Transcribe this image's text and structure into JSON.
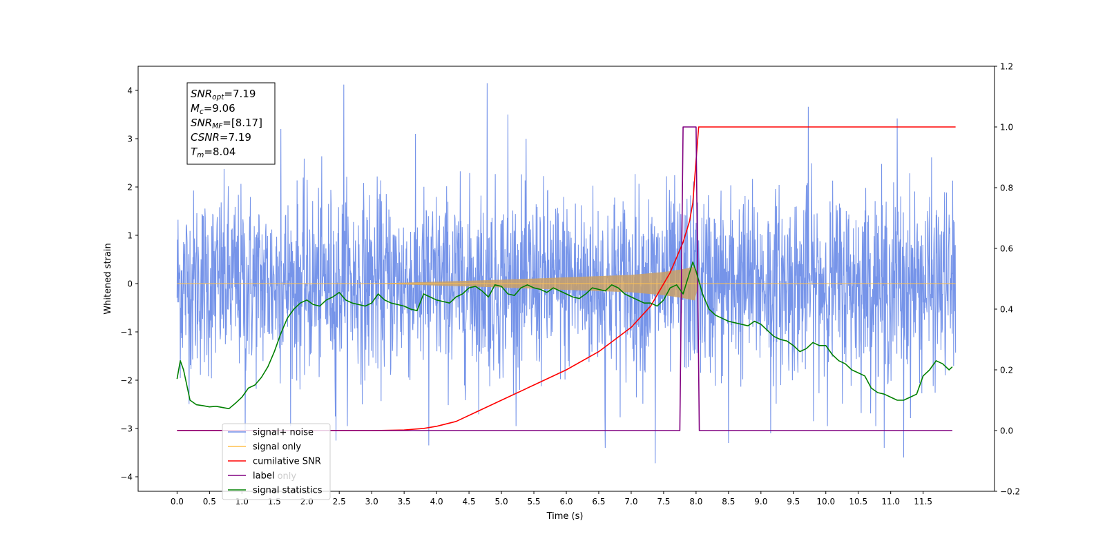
{
  "chart_data": {
    "type": "line",
    "xlabel": "Time (s)",
    "ylabel": "Whitened strain",
    "xlim": [
      -0.6,
      12.6
    ],
    "ylim": [
      -4.3,
      4.5
    ],
    "y2lim": [
      -0.2,
      1.2
    ],
    "x_ticks": [
      0.0,
      0.5,
      1.0,
      1.5,
      2.0,
      2.5,
      3.0,
      3.5,
      4.0,
      4.5,
      5.0,
      5.5,
      6.0,
      6.5,
      7.0,
      7.5,
      8.0,
      8.5,
      9.0,
      9.5,
      10.0,
      10.5,
      11.0,
      11.5
    ],
    "x_tick_labels": [
      "0.0",
      "0.5",
      "1.0",
      "1.5",
      "2.0",
      "2.5",
      "3.0",
      "3.5",
      "4.0",
      "4.5",
      "5.0",
      "5.5",
      "6.0",
      "6.5",
      "7.0",
      "7.5",
      "8.0",
      "8.5",
      "9.0",
      "9.5",
      "10.0",
      "10.5",
      "11.0",
      "11.5"
    ],
    "y_ticks": [
      -4,
      -3,
      -2,
      -1,
      0,
      1,
      2,
      3,
      4
    ],
    "y_tick_labels": [
      "−4",
      "−3",
      "−2",
      "−1",
      "0",
      "1",
      "2",
      "3",
      "4"
    ],
    "y2_ticks": [
      -0.2,
      0.0,
      0.2,
      0.4,
      0.6,
      0.8,
      1.0,
      1.2
    ],
    "y2_tick_labels": [
      "−0.2",
      "0.0",
      "0.2",
      "0.4",
      "0.6",
      "0.8",
      "1.0",
      "1.2"
    ],
    "grid": false,
    "legend_position": "lower-left",
    "legend": [
      {
        "label": "signal+ noise",
        "color": "#6f8ee8"
      },
      {
        "label": "signal only",
        "color": "#ffc04d"
      },
      {
        "label": "cumilative SNR",
        "color": "#ff0000"
      },
      {
        "label": "label",
        "color": "#800080"
      },
      {
        "label": "signal statistics",
        "color": "#008000"
      }
    ],
    "hidden_legend_text": "label only",
    "annotation_lines": [
      {
        "sym": "SNR",
        "sub": "opt",
        "rest": "=7.19"
      },
      {
        "sym": "M",
        "sub": "c",
        "rest": "=9.06"
      },
      {
        "sym": "SNR",
        "sub": "MF",
        "rest": "=[8.17]"
      },
      {
        "sym": "CSNR",
        "sub": "",
        "rest": "=7.19"
      },
      {
        "sym": "T",
        "sub": "m",
        "rest": "=8.04"
      }
    ],
    "series": [
      {
        "name": "signal+ noise",
        "axis": "left",
        "color": "#6f8ee8",
        "kind": "noise",
        "x_range": [
          0.0,
          12.0
        ],
        "sigma": 1.0,
        "spikes": [
          [
            2.57,
            4.12
          ],
          [
            4.78,
            4.15
          ],
          [
            7.37,
            -3.72
          ],
          [
            9.73,
            3.66
          ],
          [
            11.1,
            3.42
          ],
          [
            11.2,
            -3.6
          ],
          [
            3.88,
            -3.35
          ],
          [
            6.6,
            -3.4
          ],
          [
            8.5,
            -3.3
          ],
          [
            1.05,
            -3.3
          ],
          [
            2.45,
            -3.25
          ],
          [
            5.1,
            3.5
          ],
          [
            1.6,
            3.2
          ],
          [
            10.9,
            -3.4
          ],
          [
            9.15,
            -3.1
          ]
        ]
      },
      {
        "name": "signal only",
        "axis": "left",
        "color": "#ffc04d",
        "kind": "chirp",
        "x_range": [
          0.0,
          12.0
        ],
        "amplitude_curve": {
          "x": [
            0,
            3.0,
            4.0,
            5.0,
            6.0,
            7.0,
            7.5,
            7.8,
            7.98,
            8.04,
            8.06,
            12.0
          ],
          "y": [
            0,
            0.0,
            0.04,
            0.08,
            0.13,
            0.18,
            0.24,
            0.3,
            0.35,
            0.0,
            0.0,
            0.0
          ]
        }
      },
      {
        "name": "cumilative SNR",
        "axis": "right",
        "color": "#ff0000",
        "x": [
          0.0,
          3.0,
          3.5,
          3.8,
          4.0,
          4.3,
          4.6,
          5.0,
          5.5,
          6.0,
          6.5,
          7.0,
          7.3,
          7.6,
          7.8,
          7.9,
          7.95,
          8.0,
          8.04,
          12.0
        ],
        "y": [
          0.0,
          0.0,
          0.002,
          0.007,
          0.014,
          0.03,
          0.06,
          0.1,
          0.15,
          0.2,
          0.26,
          0.34,
          0.41,
          0.52,
          0.62,
          0.69,
          0.75,
          0.89,
          1.0,
          1.0
        ]
      },
      {
        "name": "label",
        "axis": "right",
        "color": "#800080",
        "x": [
          0.0,
          7.75,
          7.8,
          8.0,
          8.05,
          11.95
        ],
        "y": [
          0.0,
          0.0,
          1.0,
          1.0,
          0.0,
          0.0
        ]
      },
      {
        "name": "signal statistics",
        "axis": "right",
        "color": "#008000",
        "x": [
          0.0,
          0.05,
          0.1,
          0.2,
          0.3,
          0.4,
          0.5,
          0.6,
          0.7,
          0.8,
          0.9,
          1.0,
          1.1,
          1.2,
          1.3,
          1.4,
          1.5,
          1.6,
          1.7,
          1.8,
          1.9,
          2.0,
          2.1,
          2.2,
          2.3,
          2.4,
          2.5,
          2.6,
          2.7,
          2.8,
          2.9,
          3.0,
          3.1,
          3.2,
          3.3,
          3.4,
          3.5,
          3.6,
          3.7,
          3.8,
          3.9,
          4.0,
          4.1,
          4.2,
          4.3,
          4.4,
          4.5,
          4.6,
          4.7,
          4.8,
          4.9,
          5.0,
          5.1,
          5.2,
          5.3,
          5.4,
          5.5,
          5.6,
          5.7,
          5.8,
          5.9,
          6.0,
          6.1,
          6.2,
          6.3,
          6.4,
          6.5,
          6.6,
          6.7,
          6.8,
          6.9,
          7.0,
          7.1,
          7.2,
          7.3,
          7.4,
          7.5,
          7.6,
          7.7,
          7.8,
          7.9,
          7.95,
          8.0,
          8.1,
          8.2,
          8.3,
          8.4,
          8.5,
          8.6,
          8.7,
          8.8,
          8.9,
          9.0,
          9.1,
          9.2,
          9.3,
          9.4,
          9.5,
          9.6,
          9.7,
          9.8,
          9.9,
          10.0,
          10.1,
          10.2,
          10.3,
          10.4,
          10.5,
          10.6,
          10.7,
          10.8,
          10.9,
          11.0,
          11.1,
          11.2,
          11.3,
          11.4,
          11.5,
          11.6,
          11.7,
          11.8,
          11.9,
          11.95
        ],
        "y": [
          0.17,
          0.23,
          0.2,
          0.1,
          0.085,
          0.082,
          0.078,
          0.08,
          0.076,
          0.072,
          0.09,
          0.11,
          0.14,
          0.15,
          0.175,
          0.21,
          0.26,
          0.32,
          0.37,
          0.4,
          0.42,
          0.43,
          0.415,
          0.41,
          0.43,
          0.44,
          0.455,
          0.43,
          0.42,
          0.415,
          0.41,
          0.42,
          0.45,
          0.43,
          0.42,
          0.415,
          0.41,
          0.4,
          0.395,
          0.45,
          0.44,
          0.43,
          0.425,
          0.42,
          0.44,
          0.45,
          0.47,
          0.475,
          0.46,
          0.44,
          0.48,
          0.475,
          0.45,
          0.445,
          0.47,
          0.48,
          0.47,
          0.465,
          0.455,
          0.47,
          0.46,
          0.45,
          0.44,
          0.435,
          0.45,
          0.47,
          0.465,
          0.46,
          0.48,
          0.47,
          0.45,
          0.44,
          0.43,
          0.42,
          0.42,
          0.41,
          0.43,
          0.47,
          0.48,
          0.45,
          0.52,
          0.555,
          0.525,
          0.45,
          0.4,
          0.38,
          0.37,
          0.36,
          0.355,
          0.35,
          0.345,
          0.36,
          0.35,
          0.33,
          0.31,
          0.3,
          0.295,
          0.28,
          0.26,
          0.27,
          0.29,
          0.28,
          0.28,
          0.25,
          0.23,
          0.22,
          0.2,
          0.19,
          0.18,
          0.14,
          0.125,
          0.12,
          0.11,
          0.1,
          0.1,
          0.11,
          0.12,
          0.18,
          0.2,
          0.23,
          0.22,
          0.2,
          0.21
        ]
      }
    ]
  }
}
